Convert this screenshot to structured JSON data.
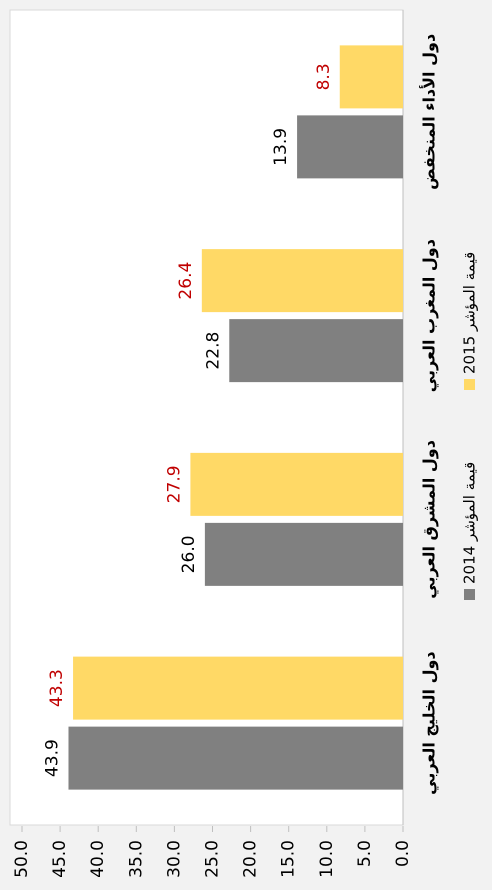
{
  "chart_data": {
    "type": "bar",
    "categories": [
      "دول الخليج العربي",
      "دول المشرق العربي",
      "دول المغرب العربي",
      "دول الأداء المنخفض"
    ],
    "series": [
      {
        "name": "قيمة المؤشر 2014",
        "color": "#808080",
        "label_color": "#000000",
        "values": [
          43.9,
          26,
          22.8,
          13.9
        ],
        "value_labels": [
          "43.9",
          "26.0",
          "22.8",
          "13.9"
        ]
      },
      {
        "name": "قيمة المؤشر 2015",
        "color": "#ffd966",
        "label_color": "#c00000",
        "values": [
          43.3,
          27.9,
          26.4,
          8.3
        ],
        "value_labels": [
          "43.3",
          "27.9",
          "26.4",
          "8.3"
        ]
      }
    ],
    "ylim": [
      0,
      50
    ],
    "yticks": [
      {
        "value": 0,
        "label": "0.0"
      },
      {
        "value": 5,
        "label": "5.0"
      },
      {
        "value": 10,
        "label": "10.0"
      },
      {
        "value": 15,
        "label": "15.0"
      },
      {
        "value": 20,
        "label": "20.0"
      },
      {
        "value": 25,
        "label": "25.0"
      },
      {
        "value": 30,
        "label": "30.0"
      },
      {
        "value": 35,
        "label": "35.0"
      },
      {
        "value": 40,
        "label": "40.0"
      },
      {
        "value": 45,
        "label": "45.0"
      },
      {
        "value": 50,
        "label": "50.0"
      }
    ],
    "grid": false
  }
}
